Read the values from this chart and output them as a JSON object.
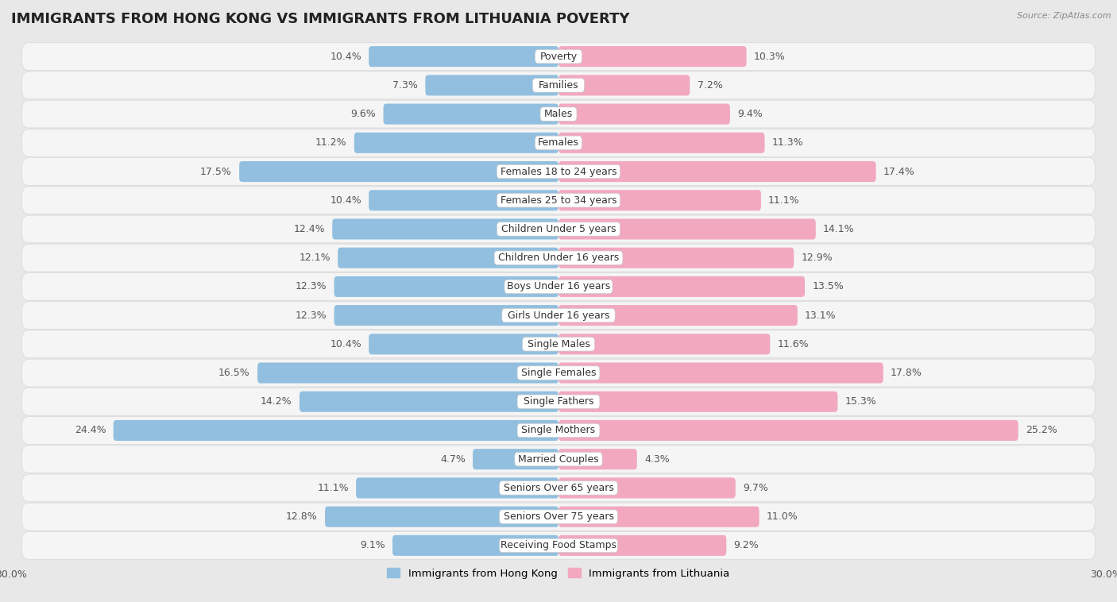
{
  "title": "IMMIGRANTS FROM HONG KONG VS IMMIGRANTS FROM LITHUANIA POVERTY",
  "source": "Source: ZipAtlas.com",
  "categories": [
    "Poverty",
    "Families",
    "Males",
    "Females",
    "Females 18 to 24 years",
    "Females 25 to 34 years",
    "Children Under 5 years",
    "Children Under 16 years",
    "Boys Under 16 years",
    "Girls Under 16 years",
    "Single Males",
    "Single Females",
    "Single Fathers",
    "Single Mothers",
    "Married Couples",
    "Seniors Over 65 years",
    "Seniors Over 75 years",
    "Receiving Food Stamps"
  ],
  "hong_kong": [
    10.4,
    7.3,
    9.6,
    11.2,
    17.5,
    10.4,
    12.4,
    12.1,
    12.3,
    12.3,
    10.4,
    16.5,
    14.2,
    24.4,
    4.7,
    11.1,
    12.8,
    9.1
  ],
  "lithuania": [
    10.3,
    7.2,
    9.4,
    11.3,
    17.4,
    11.1,
    14.1,
    12.9,
    13.5,
    13.1,
    11.6,
    17.8,
    15.3,
    25.2,
    4.3,
    9.7,
    11.0,
    9.2
  ],
  "hk_color": "#92bfdf",
  "lt_color": "#f2a8bf",
  "hk_label": "Immigrants from Hong Kong",
  "lt_label": "Immigrants from Lithuania",
  "axis_limit": 30.0,
  "background_color": "#e8e8e8",
  "bar_background": "#f5f5f5",
  "row_sep_color": "#d8d8d8",
  "title_fontsize": 13,
  "label_fontsize": 9,
  "value_fontsize": 9,
  "bar_height": 0.72
}
